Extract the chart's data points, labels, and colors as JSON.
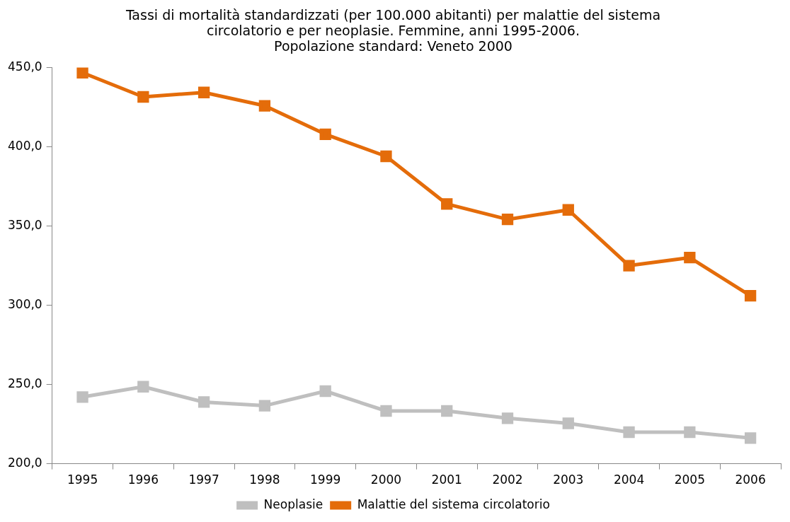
{
  "chart_data": {
    "type": "line",
    "title": "Tassi di mortalità standardizzati (per 100.000 abitanti) per malattie del sistema\ncircolatorio e per neoplasie. Femmine, anni 1995-2006.\nPopolazione standard: Veneto 2000",
    "categories": [
      "1995",
      "1996",
      "1997",
      "1998",
      "1999",
      "2000",
      "2001",
      "2002",
      "2003",
      "2004",
      "2005",
      "2006"
    ],
    "series": [
      {
        "name": "Neoplasie",
        "color": "#bfbfbf",
        "values": [
          242.1,
          248.6,
          238.9,
          236.6,
          245.8,
          233.3,
          233.3,
          228.7,
          225.5,
          219.9,
          219.9,
          216.2
        ]
      },
      {
        "name": "Malattie del sistema circolatorio",
        "color": "#e46c0a",
        "values": [
          446.8,
          431.5,
          434.3,
          425.9,
          407.9,
          394.0,
          363.9,
          354.2,
          360.2,
          325.0,
          330.1,
          306.0
        ]
      }
    ],
    "ylim": [
      200,
      450
    ],
    "yticks": [
      {
        "value": 200,
        "label": "200,0"
      },
      {
        "value": 250,
        "label": "250,0"
      },
      {
        "value": 300,
        "label": "300,0"
      },
      {
        "value": 350,
        "label": "350,0"
      },
      {
        "value": 400,
        "label": "400,0"
      },
      {
        "value": 450,
        "label": "450,0"
      }
    ],
    "grid": false,
    "legend": "bottom",
    "marker": "square",
    "line_style": "solid"
  }
}
